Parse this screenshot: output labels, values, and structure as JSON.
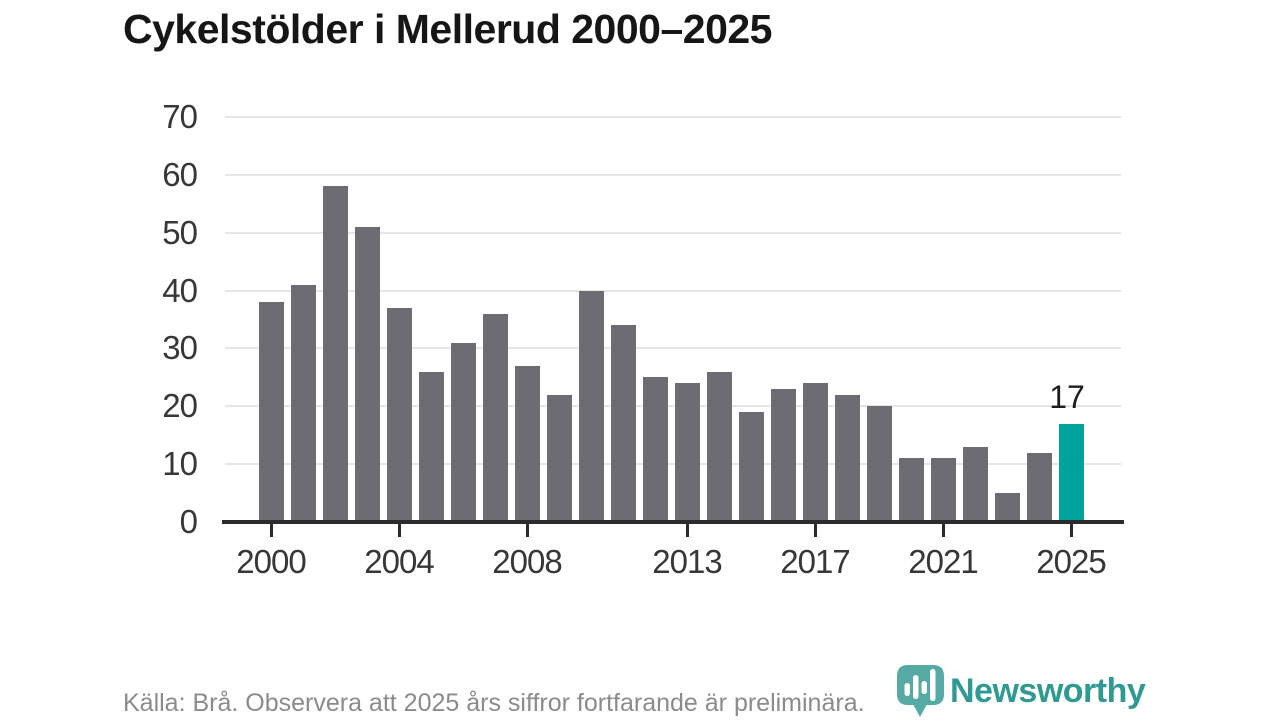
{
  "title": "Cykelstölder i Mellerud 2000–2025",
  "source_note": "Källa: Brå. Observera att 2025 års siffror fortfarande är preliminära.",
  "brand": {
    "name": "Newsworthy",
    "icon": "bar-chart-map-pin-icon"
  },
  "colors": {
    "bar": "#6e6c73",
    "highlight": "#00a39b",
    "grid": "#e6e6e6",
    "axis": "#2b2b2b",
    "tick_text": "#373737",
    "title_text": "#161616",
    "source_text": "#8b8b8e",
    "brand_teal": "#2f9a93"
  },
  "chart_data": {
    "type": "bar",
    "title": "Cykelstölder i Mellerud 2000–2025",
    "xlabel": "",
    "ylabel": "",
    "categories": [
      "2000",
      "2001",
      "2002",
      "2003",
      "2004",
      "2005",
      "2006",
      "2007",
      "2008",
      "2009",
      "2010",
      "2011",
      "2012",
      "2013",
      "2014",
      "2015",
      "2016",
      "2017",
      "2018",
      "2019",
      "2020",
      "2021",
      "2022",
      "2023",
      "2024",
      "2025"
    ],
    "values": [
      38,
      41,
      58,
      51,
      37,
      26,
      31,
      36,
      27,
      22,
      40,
      34,
      25,
      24,
      26,
      19,
      23,
      24,
      22,
      20,
      11,
      11,
      13,
      5,
      12,
      17
    ],
    "ylim": [
      0,
      70
    ],
    "y_ticks": [
      0,
      10,
      20,
      30,
      40,
      50,
      60,
      70
    ],
    "x_tick_labels": [
      "2000",
      "2004",
      "2008",
      "2013",
      "2017",
      "2021",
      "2025"
    ],
    "x_tick_indices": [
      0,
      4,
      8,
      13,
      17,
      21,
      25
    ],
    "grid": true,
    "legend": false,
    "highlight_index": 25,
    "bar_label": {
      "index": 25,
      "text": "17"
    }
  }
}
